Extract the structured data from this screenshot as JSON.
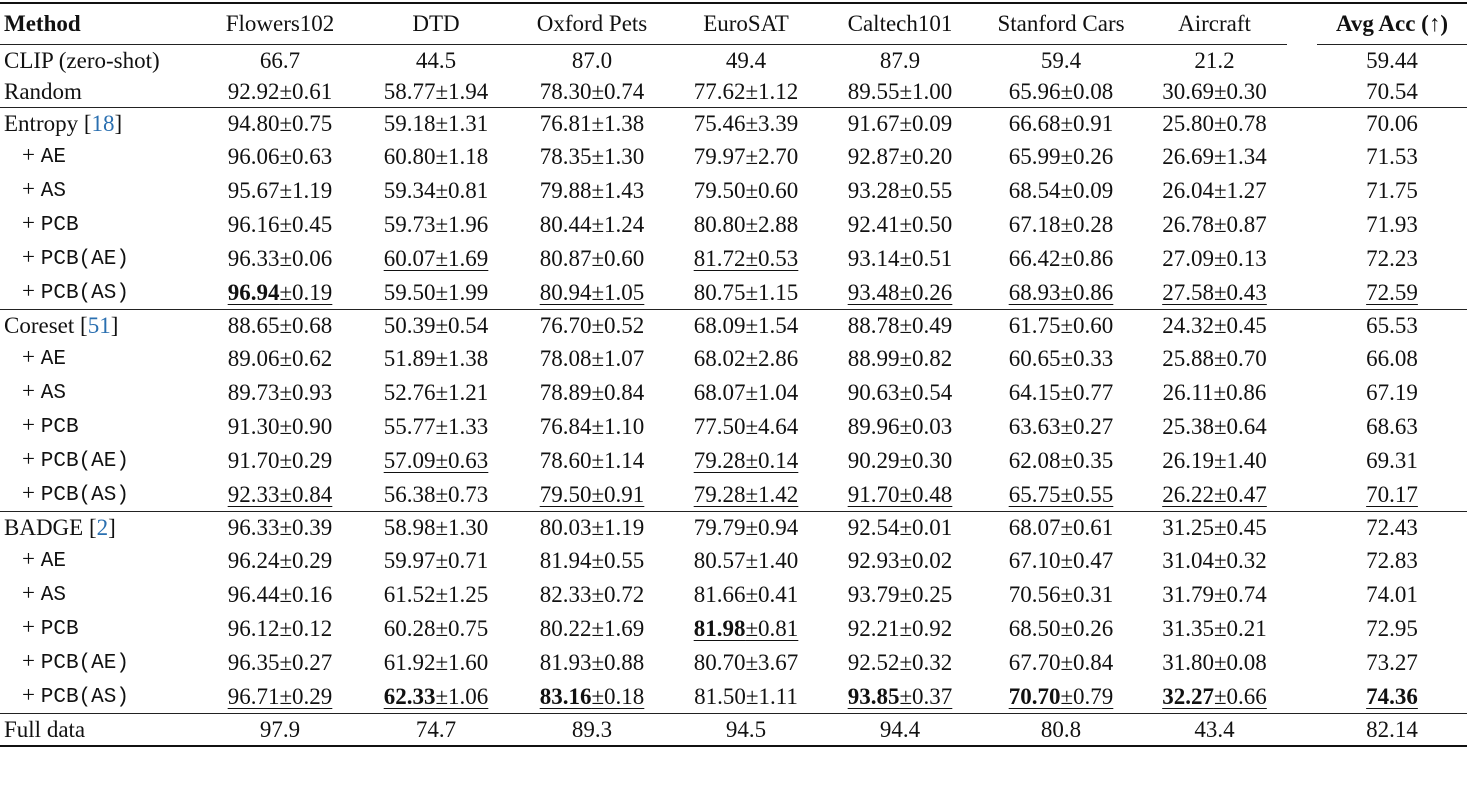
{
  "header": {
    "method": "Method",
    "columns": [
      "Flowers102",
      "DTD",
      "Oxford Pets",
      "EuroSAT",
      "Caltech101",
      "Stanford Cars",
      "Aircraft"
    ],
    "avg": "Avg Acc (↑)"
  },
  "rows": [
    {
      "label": "CLIP (zero-shot)",
      "vals": [
        "66.7",
        "44.5",
        "87.0",
        "49.4",
        "87.9",
        "59.4",
        "21.2"
      ],
      "avg": "59.44"
    },
    {
      "label": "Random",
      "vals": [
        "92.92±0.61",
        "58.77±1.94",
        "78.30±0.74",
        "77.62±1.12",
        "89.55±1.00",
        "65.96±0.08",
        "30.69±0.30"
      ],
      "avg": "70.54"
    },
    {
      "label": "Entropy",
      "cite": "18",
      "vals": [
        "94.80±0.75",
        "59.18±1.31",
        "76.81±1.38",
        "75.46±3.39",
        "91.67±0.09",
        "66.68±0.91",
        "25.80±0.78"
      ],
      "avg": "70.06",
      "sep": true
    },
    {
      "label": "AE",
      "sub": true,
      "vals": [
        "96.06±0.63",
        "60.80±1.18",
        "78.35±1.30",
        "79.97±2.70",
        "92.87±0.20",
        "65.99±0.26",
        "26.69±1.34"
      ],
      "avg": "71.53"
    },
    {
      "label": "AS",
      "sub": true,
      "vals": [
        "95.67±1.19",
        "59.34±0.81",
        "79.88±1.43",
        "79.50±0.60",
        "93.28±0.55",
        "68.54±0.09",
        "26.04±1.27"
      ],
      "avg": "71.75"
    },
    {
      "label": "PCB",
      "sub": true,
      "vals": [
        "96.16±0.45",
        "59.73±1.96",
        "80.44±1.24",
        "80.80±2.88",
        "92.41±0.50",
        "67.18±0.28",
        "26.78±0.87"
      ],
      "avg": "71.93"
    },
    {
      "label": "PCB(AE)",
      "sub": true,
      "vals": [
        "96.33±0.06",
        "60.07±1.69",
        "80.87±0.60",
        "81.72±0.53",
        "93.14±0.51",
        "66.42±0.86",
        "27.09±0.13"
      ],
      "avg": "72.23"
    },
    {
      "label": "PCB(AS)",
      "sub": true,
      "vals": [
        "96.94±0.19",
        "59.50±1.99",
        "80.94±1.05",
        "80.75±1.15",
        "93.48±0.26",
        "68.93±0.86",
        "27.58±0.43"
      ],
      "avg": "72.59"
    },
    {
      "label": "Coreset",
      "cite": "51",
      "vals": [
        "88.65±0.68",
        "50.39±0.54",
        "76.70±0.52",
        "68.09±1.54",
        "88.78±0.49",
        "61.75±0.60",
        "24.32±0.45"
      ],
      "avg": "65.53",
      "sep": true
    },
    {
      "label": "AE",
      "sub": true,
      "vals": [
        "89.06±0.62",
        "51.89±1.38",
        "78.08±1.07",
        "68.02±2.86",
        "88.99±0.82",
        "60.65±0.33",
        "25.88±0.70"
      ],
      "avg": "66.08"
    },
    {
      "label": "AS",
      "sub": true,
      "vals": [
        "89.73±0.93",
        "52.76±1.21",
        "78.89±0.84",
        "68.07±1.04",
        "90.63±0.54",
        "64.15±0.77",
        "26.11±0.86"
      ],
      "avg": "67.19"
    },
    {
      "label": "PCB",
      "sub": true,
      "vals": [
        "91.30±0.90",
        "55.77±1.33",
        "76.84±1.10",
        "77.50±4.64",
        "89.96±0.03",
        "63.63±0.27",
        "25.38±0.64"
      ],
      "avg": "68.63"
    },
    {
      "label": "PCB(AE)",
      "sub": true,
      "vals": [
        "91.70±0.29",
        "57.09±0.63",
        "78.60±1.14",
        "79.28±0.14",
        "90.29±0.30",
        "62.08±0.35",
        "26.19±1.40"
      ],
      "avg": "69.31"
    },
    {
      "label": "PCB(AS)",
      "sub": true,
      "vals": [
        "92.33±0.84",
        "56.38±0.73",
        "79.50±0.91",
        "79.28±1.42",
        "91.70±0.48",
        "65.75±0.55",
        "26.22±0.47"
      ],
      "avg": "70.17"
    },
    {
      "label": "BADGE",
      "cite": "2",
      "vals": [
        "96.33±0.39",
        "58.98±1.30",
        "80.03±1.19",
        "79.79±0.94",
        "92.54±0.01",
        "68.07±0.61",
        "31.25±0.45"
      ],
      "avg": "72.43",
      "sep": true
    },
    {
      "label": "AE",
      "sub": true,
      "vals": [
        "96.24±0.29",
        "59.97±0.71",
        "81.94±0.55",
        "80.57±1.40",
        "92.93±0.02",
        "67.10±0.47",
        "31.04±0.32"
      ],
      "avg": "72.83"
    },
    {
      "label": "AS",
      "sub": true,
      "vals": [
        "96.44±0.16",
        "61.52±1.25",
        "82.33±0.72",
        "81.66±0.41",
        "93.79±0.25",
        "70.56±0.31",
        "31.79±0.74"
      ],
      "avg": "74.01"
    },
    {
      "label": "PCB",
      "sub": true,
      "vals": [
        "96.12±0.12",
        "60.28±0.75",
        "80.22±1.69",
        "81.98±0.81",
        "92.21±0.92",
        "68.50±0.26",
        "31.35±0.21"
      ],
      "avg": "72.95"
    },
    {
      "label": "PCB(AE)",
      "sub": true,
      "vals": [
        "96.35±0.27",
        "61.92±1.60",
        "81.93±0.88",
        "80.70±3.67",
        "92.52±0.32",
        "67.70±0.84",
        "31.80±0.08"
      ],
      "avg": "73.27"
    },
    {
      "label": "PCB(AS)",
      "sub": true,
      "vals": [
        "96.71±0.29",
        "62.33±1.06",
        "83.16±0.18",
        "81.50±1.11",
        "93.85±0.37",
        "70.70±0.79",
        "32.27±0.66"
      ],
      "avg": "74.36"
    },
    {
      "label": "Full data",
      "vals": [
        "97.9",
        "74.7",
        "89.3",
        "94.5",
        "94.4",
        "80.8",
        "43.4"
      ],
      "avg": "82.14",
      "sep": true,
      "last": true
    }
  ],
  "underlined": [
    [
      6,
      1
    ],
    [
      6,
      3
    ],
    [
      7,
      0
    ],
    [
      7,
      2
    ],
    [
      7,
      4
    ],
    [
      7,
      5
    ],
    [
      7,
      6
    ],
    [
      7,
      7
    ],
    [
      12,
      1
    ],
    [
      12,
      3
    ],
    [
      13,
      0
    ],
    [
      13,
      2
    ],
    [
      13,
      3
    ],
    [
      13,
      4
    ],
    [
      13,
      5
    ],
    [
      13,
      6
    ],
    [
      13,
      7
    ],
    [
      17,
      3
    ],
    [
      19,
      0
    ],
    [
      19,
      1
    ],
    [
      19,
      2
    ],
    [
      19,
      4
    ],
    [
      19,
      5
    ],
    [
      19,
      6
    ],
    [
      19,
      7
    ]
  ],
  "bold_mean": [
    [
      7,
      0
    ],
    [
      17,
      3
    ],
    [
      19,
      1
    ],
    [
      19,
      2
    ],
    [
      19,
      4
    ],
    [
      19,
      5
    ],
    [
      19,
      6
    ],
    [
      19,
      7
    ]
  ]
}
